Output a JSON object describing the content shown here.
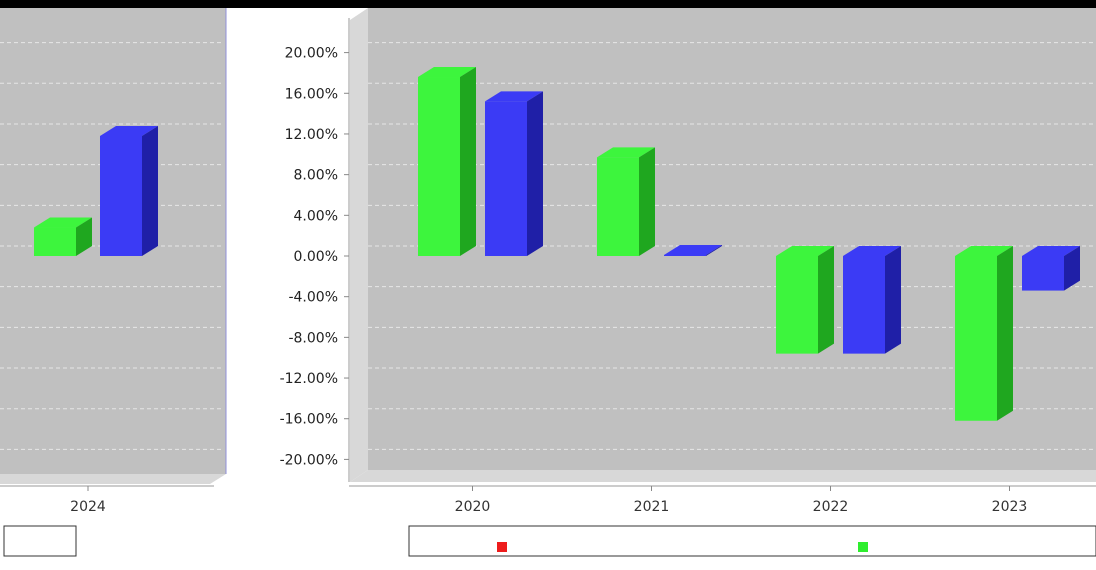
{
  "chart_data": [
    {
      "type": "bar",
      "panel": "left-partial",
      "categories": [
        "2024"
      ],
      "series": [
        {
          "values": [
            2.8
          ],
          "color": "#2eee2e"
        },
        {
          "values": [
            11.8
          ],
          "color": "#2e2eee"
        }
      ],
      "legend_placement": "bottom-left"
    },
    {
      "type": "bar",
      "panel": "main",
      "categories": [
        "2020",
        "2021",
        "2022",
        "2023"
      ],
      "series": [
        {
          "values": [
            17.6,
            9.7,
            -9.6,
            -16.2
          ],
          "color": "#2eee2e"
        },
        {
          "values": [
            15.2,
            0.1,
            -9.6,
            -3.4
          ],
          "color": "#2e2eee"
        }
      ],
      "ylim": [
        -20,
        20
      ],
      "yticks": [
        "20.00%",
        "16.00%",
        "12.00%",
        "8.00%",
        "4.00%",
        "0.00%",
        "-4.00%",
        "-8.00%",
        "-12.00%",
        "-16.00%",
        "-20.00%"
      ],
      "grid": true,
      "legend_placement": "bottom"
    }
  ],
  "colors": {
    "plot_bg": "#c0c0c0",
    "floor": "#d8d8d8",
    "grid": "#e6e6e6",
    "green_top": "#3df53d",
    "green_side": "#1fa71f",
    "blue_top": "#3b3bf5",
    "blue_side": "#1f1fa7",
    "legend_red": "#ee1c1c"
  }
}
